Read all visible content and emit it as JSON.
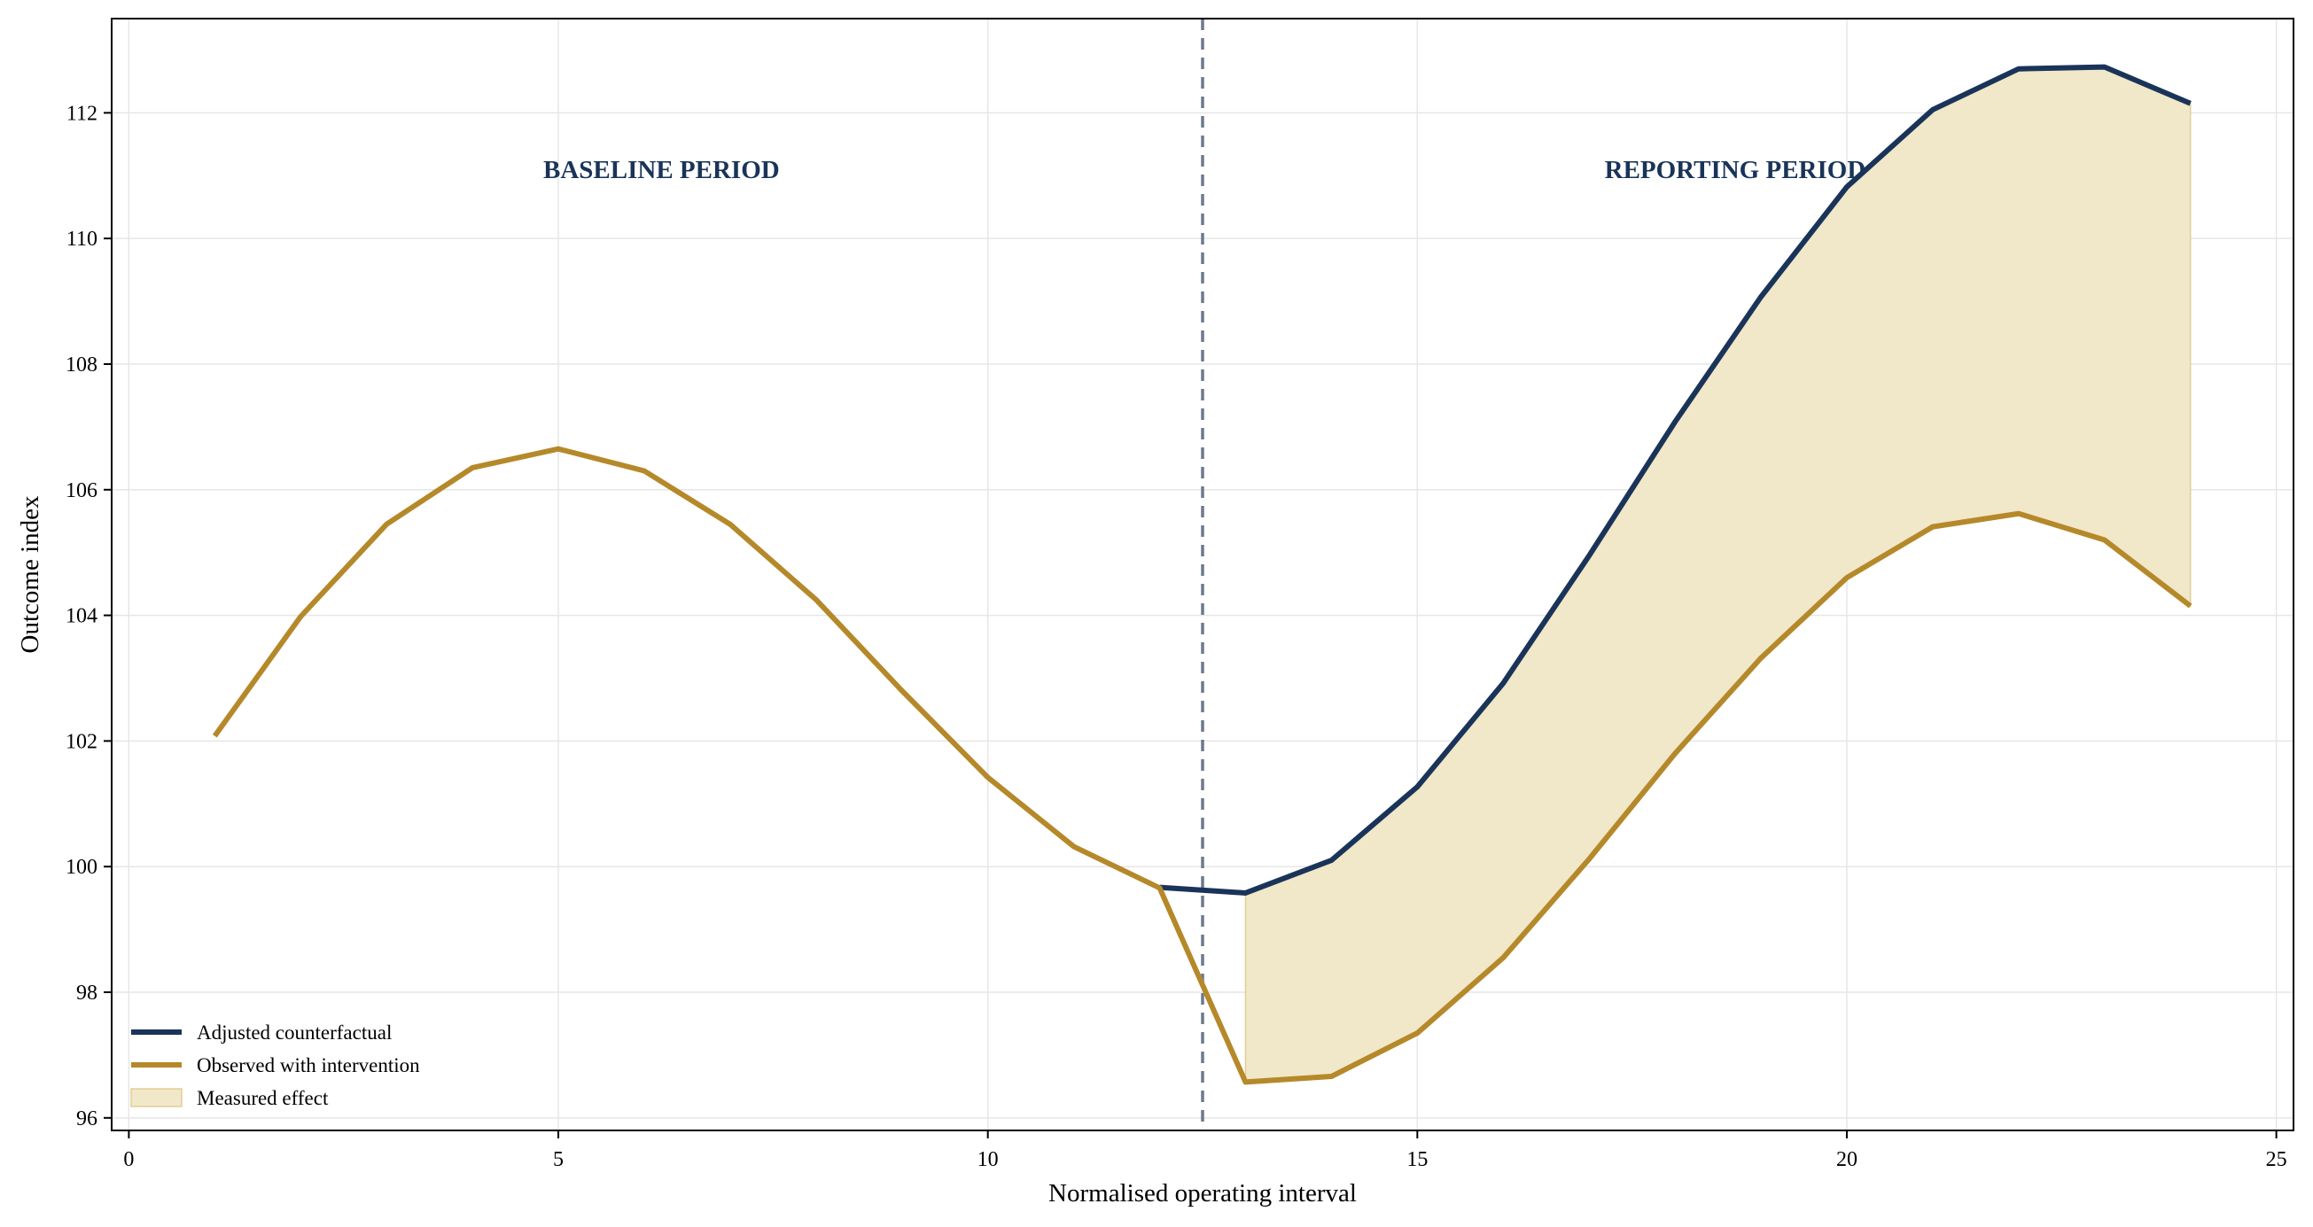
{
  "chart_data": {
    "type": "line",
    "title": "",
    "xlabel": "Normalised operating interval",
    "ylabel": "Outcome index",
    "xlim": [
      -0.2,
      25.2
    ],
    "ylim": [
      95.8,
      113.5
    ],
    "xticks": [
      0,
      5,
      10,
      15,
      20,
      25
    ],
    "yticks": [
      96,
      98,
      100,
      102,
      104,
      106,
      108,
      110,
      112
    ],
    "grid": true,
    "legend_position": "lower-left",
    "intervention_x": 12.5,
    "annotations": [
      {
        "text": "BASELINE PERIOD",
        "x": 6.2,
        "y": 111.1
      },
      {
        "text": "REPORTING PERIOD",
        "x": 18.7,
        "y": 111.1
      }
    ],
    "series": [
      {
        "name": "Adjusted counterfactual",
        "color": "#1a3459",
        "x": [
          12,
          13,
          14,
          15,
          16,
          17,
          18,
          19,
          20,
          21,
          22,
          23,
          24
        ],
        "y": [
          99.67,
          99.58,
          100.1,
          101.27,
          102.92,
          104.95,
          107.08,
          109.07,
          110.82,
          112.05,
          112.7,
          112.73,
          112.15
        ]
      },
      {
        "name": "Observed with intervention",
        "color": "#b5892a",
        "x": [
          1,
          2,
          3,
          4,
          5,
          6,
          7,
          8,
          9,
          10,
          11,
          12,
          13,
          14,
          15,
          16,
          17,
          18,
          19,
          20,
          21,
          22,
          23,
          24
        ],
        "y": [
          102.08,
          103.98,
          105.45,
          106.35,
          106.65,
          106.3,
          105.45,
          104.25,
          102.8,
          101.42,
          100.32,
          99.66,
          96.57,
          96.66,
          97.35,
          98.55,
          100.12,
          101.8,
          103.32,
          104.6,
          105.41,
          105.62,
          105.2,
          104.15
        ]
      }
    ],
    "fill": {
      "name": "Measured effect",
      "color": "#f1e7c9",
      "edge_color": "#e2cf96",
      "x_from": 13,
      "x_to": 24
    }
  }
}
